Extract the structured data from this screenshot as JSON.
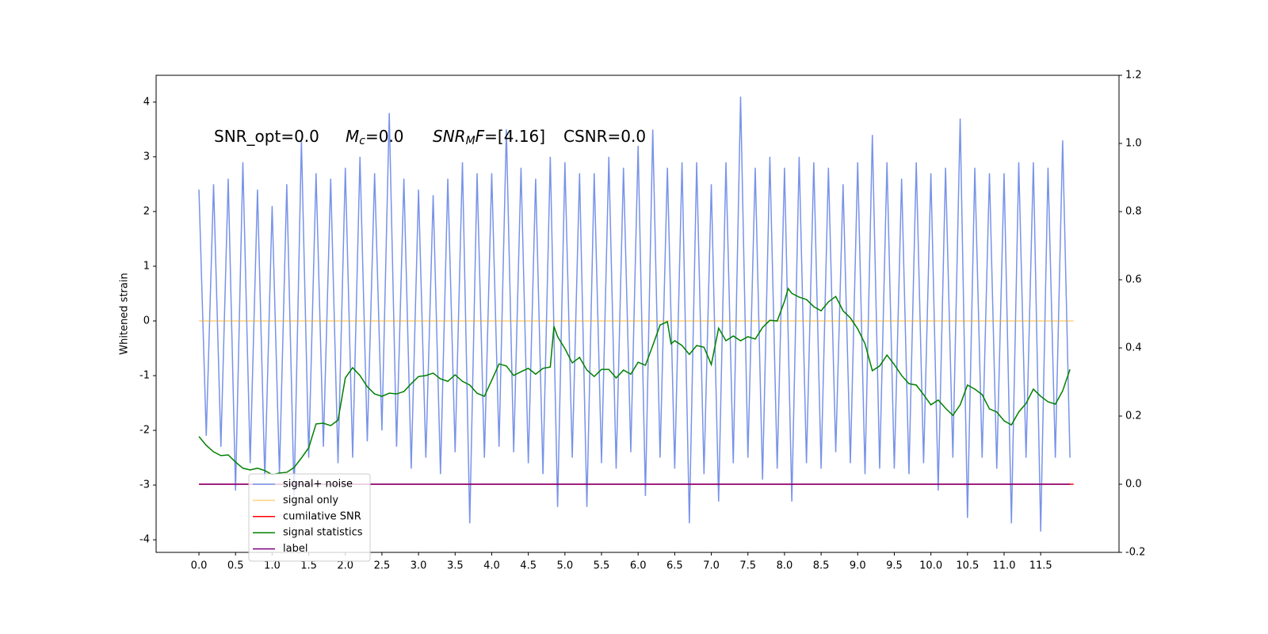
{
  "chart_data": {
    "type": "line",
    "ylabel": "Whitened strain",
    "annotations": [
      [
        {
          "text": "SNR_opt=0.0"
        }
      ],
      [
        {
          "text": "M",
          "italic": true
        },
        {
          "text": "c",
          "italic": true,
          "sub": true
        },
        {
          "text": "=0.0"
        }
      ],
      [
        {
          "text": "SNR",
          "italic": true
        },
        {
          "text": "M",
          "italic": true,
          "sub": true
        },
        {
          "text": "F",
          "italic": true
        },
        {
          "text": "=[4.16]"
        }
      ],
      [
        {
          "text": "CSNR=0.0"
        }
      ]
    ],
    "xlim": [
      -0.585,
      12.57
    ],
    "ylim": [
      -4.23,
      4.49
    ],
    "y2lim": [
      -0.2,
      1.2
    ],
    "xticks": [
      {
        "value": 0,
        "label": "0.0"
      },
      0.5,
      {
        "value": 1,
        "label": "1.0"
      },
      1.5,
      {
        "value": 2,
        "label": "2.0"
      },
      2.5,
      {
        "value": 3,
        "label": "3.0"
      },
      3.5,
      {
        "value": 4,
        "label": "4.0"
      },
      4.5,
      {
        "value": 5,
        "label": "5.0"
      },
      5.5,
      {
        "value": 6,
        "label": "6.0"
      },
      6.5,
      {
        "value": 7,
        "label": "7.0"
      },
      7.5,
      {
        "value": 8,
        "label": "8.0"
      },
      8.5,
      {
        "value": 9,
        "label": "9.0"
      },
      9.5,
      {
        "value": 10,
        "label": "10.0"
      },
      10.5,
      {
        "value": 11,
        "label": "11.0"
      },
      11.5
    ],
    "yticks": [
      -4,
      -3,
      -2,
      -1,
      0,
      1,
      2,
      3,
      4
    ],
    "y2ticks": [
      -0.2,
      {
        "value": 0,
        "label": "0.0"
      },
      0.2,
      0.4,
      0.6,
      0.8,
      {
        "value": 1,
        "label": "1.0"
      },
      1.2
    ],
    "legend": "lower left",
    "series": [
      {
        "name": "signal+ noise",
        "color": "#7893e8",
        "x": [
          0.0,
          0.1,
          0.2,
          0.3,
          0.4,
          0.5,
          0.6,
          0.7,
          0.8,
          0.9,
          1.0,
          1.1,
          1.2,
          1.3,
          1.4,
          1.5,
          1.6,
          1.7,
          1.8,
          1.9,
          2.0,
          2.1,
          2.2,
          2.3,
          2.4,
          2.5,
          2.6,
          2.7,
          2.8,
          2.9,
          3.0,
          3.1,
          3.2,
          3.3,
          3.4,
          3.5,
          3.6,
          3.7,
          3.8,
          3.9,
          4.0,
          4.1,
          4.2,
          4.3,
          4.4,
          4.5,
          4.6,
          4.7,
          4.8,
          4.9,
          5.0,
          5.1,
          5.2,
          5.3,
          5.4,
          5.5,
          5.6,
          5.7,
          5.8,
          5.9,
          6.0,
          6.1,
          6.2,
          6.3,
          6.4,
          6.5,
          6.6,
          6.7,
          6.8,
          6.9,
          7.0,
          7.1,
          7.2,
          7.3,
          7.4,
          7.5,
          7.6,
          7.7,
          7.8,
          7.9,
          8.0,
          8.1,
          8.2,
          8.3,
          8.4,
          8.5,
          8.6,
          8.7,
          8.8,
          8.9,
          9.0,
          9.1,
          9.2,
          9.3,
          9.4,
          9.5,
          9.6,
          9.7,
          9.8,
          9.9,
          10.0,
          10.1,
          10.2,
          10.3,
          10.4,
          10.5,
          10.6,
          10.7,
          10.8,
          10.9,
          11.0,
          11.1,
          11.2,
          11.3,
          11.4,
          11.5,
          11.6,
          11.7,
          11.8,
          11.9
        ],
        "values": [
          2.4,
          -2.1,
          2.5,
          -2.3,
          2.6,
          -3.1,
          2.9,
          -2.6,
          2.4,
          -2.9,
          2.1,
          -2.8,
          2.5,
          -3.2,
          3.3,
          -2.5,
          2.7,
          -2.3,
          2.6,
          -2.6,
          2.8,
          -2.5,
          3.0,
          -2.2,
          2.7,
          -2.0,
          3.8,
          -2.3,
          2.6,
          -2.7,
          2.4,
          -2.5,
          2.3,
          -2.8,
          2.6,
          -2.4,
          2.9,
          -3.7,
          2.7,
          -2.5,
          2.7,
          -2.3,
          3.5,
          -2.4,
          2.8,
          -2.6,
          2.6,
          -2.8,
          3.0,
          -3.4,
          2.9,
          -2.5,
          2.7,
          -3.4,
          2.7,
          -2.6,
          3.0,
          -2.7,
          2.8,
          -2.4,
          3.2,
          -3.2,
          3.5,
          -2.5,
          2.8,
          -2.7,
          2.9,
          -3.7,
          2.9,
          -2.8,
          2.5,
          -3.3,
          2.9,
          -2.6,
          4.1,
          -2.5,
          2.8,
          -2.9,
          3.0,
          -2.7,
          2.8,
          -3.3,
          3.0,
          -2.6,
          2.9,
          -2.7,
          2.8,
          -2.4,
          2.5,
          -2.6,
          2.9,
          -2.8,
          3.4,
          -2.7,
          2.9,
          -2.7,
          2.6,
          -2.8,
          2.9,
          -2.6,
          2.7,
          -3.1,
          2.8,
          -2.5,
          3.7,
          -3.6,
          2.8,
          -2.5,
          2.7,
          -2.7,
          2.7,
          -3.7,
          2.9,
          -2.5,
          2.9,
          -3.85,
          2.8,
          -2.5,
          3.3,
          -2.5
        ]
      },
      {
        "name": "signal only",
        "color": "#ffa500",
        "x": [
          0,
          11.95
        ],
        "values": [
          0,
          0
        ]
      },
      {
        "name": "cumilative SNR",
        "color": "#ff0000",
        "axis": "y2",
        "x": [
          0,
          11.95
        ],
        "values": [
          0,
          0
        ]
      },
      {
        "name": "signal statistics",
        "color": "#008000",
        "axis": "y2",
        "x": [
          0.0,
          0.1,
          0.2,
          0.3,
          0.4,
          0.5,
          0.6,
          0.7,
          0.8,
          0.9,
          1.0,
          1.1,
          1.2,
          1.3,
          1.4,
          1.5,
          1.6,
          1.7,
          1.8,
          1.9,
          2.0,
          2.1,
          2.2,
          2.3,
          2.4,
          2.5,
          2.6,
          2.7,
          2.8,
          2.9,
          3.0,
          3.1,
          3.2,
          3.3,
          3.4,
          3.5,
          3.6,
          3.7,
          3.8,
          3.9,
          4.0,
          4.1,
          4.2,
          4.3,
          4.4,
          4.5,
          4.6,
          4.7,
          4.8,
          4.85,
          4.9,
          5.0,
          5.1,
          5.2,
          5.3,
          5.4,
          5.5,
          5.6,
          5.7,
          5.8,
          5.9,
          6.0,
          6.1,
          6.2,
          6.3,
          6.4,
          6.45,
          6.5,
          6.6,
          6.7,
          6.8,
          6.9,
          7.0,
          7.1,
          7.2,
          7.3,
          7.4,
          7.5,
          7.6,
          7.7,
          7.8,
          7.9,
          8.0,
          8.05,
          8.1,
          8.2,
          8.3,
          8.4,
          8.5,
          8.6,
          8.7,
          8.8,
          8.9,
          9.0,
          9.1,
          9.2,
          9.3,
          9.4,
          9.5,
          9.6,
          9.7,
          9.8,
          9.9,
          10.0,
          10.1,
          10.2,
          10.3,
          10.4,
          10.5,
          10.6,
          10.7,
          10.8,
          10.9,
          11.0,
          11.1,
          11.2,
          11.3,
          11.4,
          11.5,
          11.6,
          11.7,
          11.8,
          11.9
        ],
        "values": [
          0.14,
          0.114,
          0.095,
          0.084,
          0.086,
          0.065,
          0.047,
          0.042,
          0.047,
          0.04,
          0.028,
          0.033,
          0.035,
          0.049,
          0.077,
          0.107,
          0.177,
          0.179,
          0.172,
          0.188,
          0.312,
          0.342,
          0.319,
          0.286,
          0.265,
          0.258,
          0.267,
          0.265,
          0.272,
          0.295,
          0.316,
          0.319,
          0.326,
          0.309,
          0.302,
          0.321,
          0.302,
          0.291,
          0.267,
          0.258,
          0.305,
          0.353,
          0.347,
          0.319,
          0.33,
          0.34,
          0.323,
          0.34,
          0.344,
          0.463,
          0.433,
          0.398,
          0.356,
          0.372,
          0.335,
          0.316,
          0.337,
          0.337,
          0.312,
          0.335,
          0.323,
          0.358,
          0.349,
          0.407,
          0.467,
          0.477,
          0.412,
          0.421,
          0.407,
          0.381,
          0.407,
          0.402,
          0.351,
          0.458,
          0.421,
          0.435,
          0.421,
          0.433,
          0.426,
          0.46,
          0.481,
          0.479,
          0.537,
          0.574,
          0.56,
          0.549,
          0.542,
          0.521,
          0.509,
          0.535,
          0.551,
          0.509,
          0.488,
          0.456,
          0.412,
          0.333,
          0.347,
          0.379,
          0.351,
          0.319,
          0.295,
          0.291,
          0.263,
          0.233,
          0.247,
          0.223,
          0.202,
          0.233,
          0.291,
          0.279,
          0.263,
          0.221,
          0.212,
          0.186,
          0.174,
          0.212,
          0.237,
          0.279,
          0.258,
          0.242,
          0.235,
          0.274,
          0.337
        ]
      },
      {
        "name": "label",
        "color": "#800080",
        "axis": "y2",
        "x": [
          0,
          11.9
        ],
        "values": [
          0,
          0
        ]
      }
    ]
  }
}
